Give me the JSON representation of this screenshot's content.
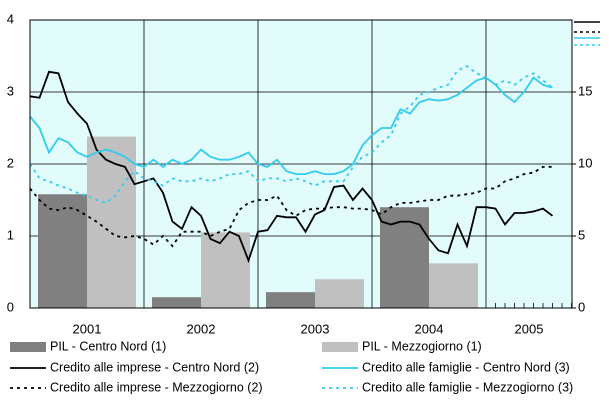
{
  "chart_data": [
    {
      "type": "bar",
      "categories": [
        "2001",
        "2002",
        "2003",
        "2004",
        "2005"
      ],
      "series": [
        {
          "name": "PIL - Centro Nord (1)",
          "color": "#808080",
          "values": [
            1.58,
            0.15,
            0.22,
            1.4,
            null
          ]
        },
        {
          "name": "PIL - Mezzogiorno (1)",
          "color": "#c0c0c0",
          "values": [
            2.38,
            1.05,
            0.4,
            0.62,
            null
          ]
        }
      ],
      "ylim": [
        0,
        4
      ],
      "yticks": [
        0,
        1,
        2,
        3,
        4
      ],
      "grid": true
    },
    {
      "type": "line",
      "series": [
        {
          "name": "Credito alle imprese - Centro Nord (2)",
          "color": "#000000",
          "dash": "solid",
          "axis": "y2",
          "values": [
            14.7,
            14.6,
            16.4,
            16.3,
            14.3,
            13.5,
            12.8,
            11,
            10.3,
            10,
            9.8,
            8.6,
            8.8,
            9,
            8,
            6,
            5.5,
            7,
            6.4,
            4.8,
            4.5,
            5.3,
            5,
            3.3,
            5.3,
            5.4,
            6.4,
            6.3,
            6.3,
            5.3,
            6.5,
            6.8,
            8.4,
            8.5,
            7.5,
            8.3,
            7.5,
            6,
            5.8,
            6,
            6,
            5.8,
            4.8,
            4,
            3.8,
            5.8,
            4.3,
            7,
            7,
            6.9,
            5.8,
            6.6,
            6.6,
            6.7,
            6.9,
            6.4
          ]
        },
        {
          "name": "Credito alle famiglie - Centro Nord (3)",
          "color": "#33ccee",
          "dash": "solid",
          "axis": "y2",
          "values": [
            13.3,
            12.5,
            10.8,
            11.8,
            11.5,
            10.8,
            10.5,
            10.8,
            11,
            10.8,
            10.5,
            10,
            9.8,
            10.3,
            9.8,
            10.3,
            10,
            10.3,
            11,
            10.5,
            10.3,
            10.3,
            10.5,
            10.8,
            10,
            9.8,
            10.3,
            9.5,
            9.3,
            9.3,
            9.5,
            9.3,
            9.3,
            9.5,
            10,
            11.3,
            12,
            12.5,
            12.5,
            13.8,
            13.5,
            14.3,
            14.5,
            14.4,
            14.5,
            14.8,
            15.3,
            15.8,
            16,
            15.5,
            14.8,
            14.3,
            15,
            16,
            15.5,
            15.3
          ]
        },
        {
          "name": "Credito alle imprese - Mezzogiorno (2)",
          "color": "#000000",
          "dash": "dashed",
          "axis": "y2",
          "values": [
            8.3,
            7.5,
            6.9,
            6.8,
            7,
            6.8,
            6.4,
            6,
            5.5,
            5,
            4.9,
            5,
            4.8,
            4.4,
            5,
            4.3,
            5.3,
            5.3,
            5.3,
            5,
            5.3,
            5.5,
            6.8,
            7.3,
            7.5,
            7.5,
            7.8,
            6.8,
            6.4,
            6.8,
            6.9,
            6.9,
            7,
            7,
            6.9,
            6.9,
            6.8,
            6.5,
            7,
            7.3,
            7.3,
            7.4,
            7.5,
            7.5,
            7.8,
            7.8,
            7.9,
            8,
            8.3,
            8.3,
            8.8,
            9,
            9.3,
            9.4,
            9.8,
            9.8
          ]
        },
        {
          "name": "Credito alle famiglie - Mezzogiorno (3)",
          "color": "#33ccee",
          "dash": "dashed",
          "axis": "y2",
          "values": [
            10,
            9,
            8.8,
            8.5,
            8.3,
            8,
            7.8,
            7.5,
            7.3,
            7.8,
            8.8,
            9.5,
            9,
            8.8,
            8.5,
            9,
            8.8,
            8.8,
            9,
            8.8,
            9,
            9.3,
            9.3,
            9.5,
            8.8,
            9,
            9,
            8.8,
            9,
            8.8,
            8.5,
            8.8,
            8.8,
            8.8,
            9.8,
            10.5,
            10.8,
            11.5,
            12,
            13.5,
            14,
            14.8,
            15,
            15.3,
            15.5,
            16.5,
            16.8,
            16.3,
            16,
            15.5,
            15.8,
            15.5,
            16,
            16.3,
            15.8,
            15.3
          ]
        }
      ],
      "y2lim": [
        0,
        20
      ],
      "y2ticks": [
        0,
        5,
        10,
        15
      ]
    }
  ]
}
